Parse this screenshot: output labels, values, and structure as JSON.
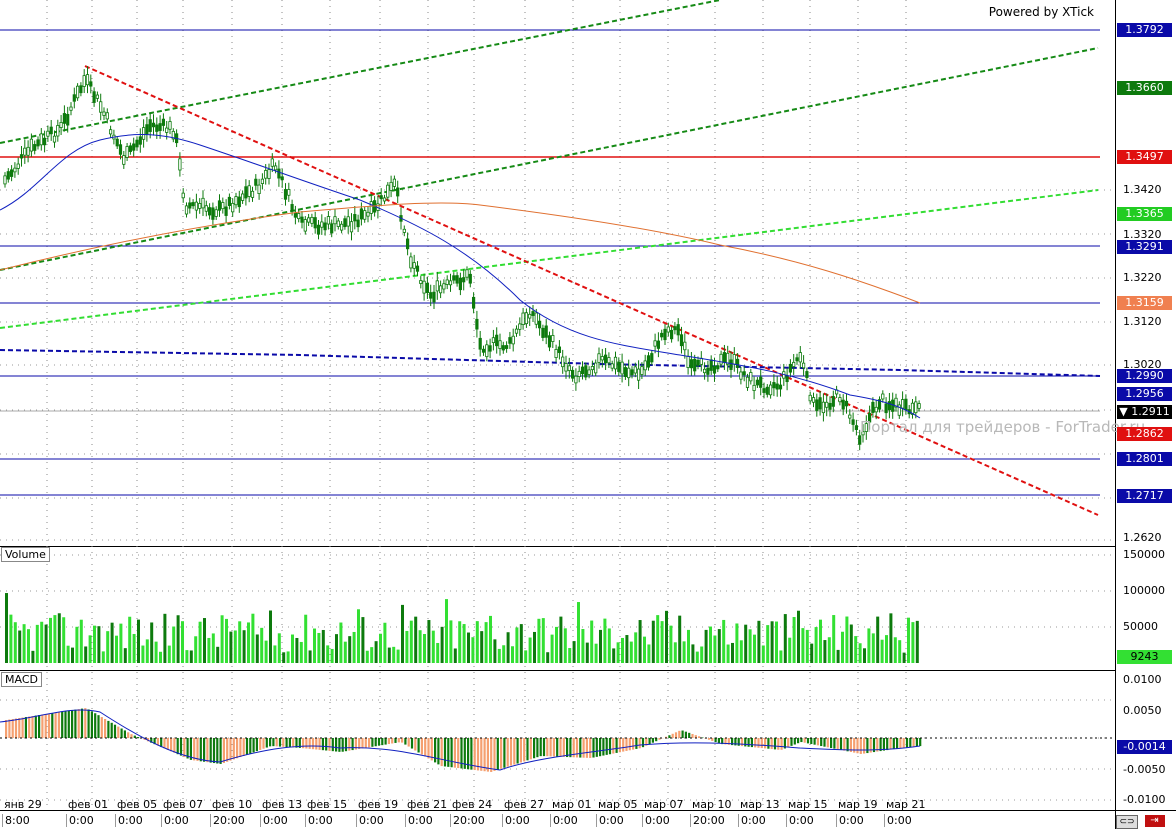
{
  "powered_by": "Powered by XTick",
  "watermark": "Портал для трейдеров - ForTrader.ru",
  "panes": {
    "volume_label": "Volume",
    "macd_label": "MACD"
  },
  "price_axis": {
    "ticks": [
      "1.3420",
      "1.3320",
      "1.3220",
      "1.3120",
      "1.3020",
      "1.2620"
    ],
    "tags": [
      {
        "label": "1.3792",
        "color": "#0a0aa8"
      },
      {
        "label": "1.3660",
        "color": "#0d7a0d"
      },
      {
        "label": "1.3497",
        "color": "#e01010"
      },
      {
        "label": "1.3365",
        "color": "#22cc22"
      },
      {
        "label": "1.3291",
        "color": "#0a0aa8"
      },
      {
        "label": "1.3159",
        "color": "#f08050"
      },
      {
        "label": "1.2990",
        "color": "#0a0aa8"
      },
      {
        "label": "1.2956",
        "color": "#0a0aa8"
      },
      {
        "label": "▼ 1.2911",
        "color": "#000000"
      },
      {
        "label": "1.2862",
        "color": "#e01010"
      },
      {
        "label": "1.2801",
        "color": "#0a0aa8"
      },
      {
        "label": "1.2717",
        "color": "#0a0aa8"
      }
    ]
  },
  "volume_axis": {
    "ticks": [
      "150000",
      "100000",
      "50000"
    ],
    "current": "9243"
  },
  "macd_axis": {
    "ticks": [
      "0.0100",
      "0.0050",
      "-0.0050",
      "-0.0100"
    ],
    "current": "-0.0014"
  },
  "time_axis": {
    "dates": [
      "янв 29",
      "фев 01",
      "фев 05",
      "фев 07",
      "фев 10",
      "фев 13",
      "фев 15",
      "фев 19",
      "фев 21",
      "фев 24",
      "фев 27",
      "мар 01",
      "мар 05",
      "мар 07",
      "мар 10",
      "мар 13",
      "мар 15",
      "мар 19",
      "мар 21"
    ],
    "times": [
      "8:00",
      "0:00",
      "0:00",
      "0:00",
      "20:00",
      "0:00",
      "0:00",
      "0:00",
      "0:00",
      "20:00",
      "0:00",
      "0:00",
      "0:00",
      "0:00",
      "20:00",
      "0:00",
      "0:00",
      "0:00",
      "0:00"
    ]
  },
  "colors": {
    "bull": "#0d7a0d",
    "bear": "#0d7a0d",
    "blue_line": "#0a0aa8",
    "red_line": "#e01010",
    "ma_fast": "#1020c0",
    "ma_slow": "#e07030",
    "green_dash": "#158a15",
    "light_green_dash": "#33dd33",
    "vol_bright": "#33e033",
    "vol_dark": "#0d7a0d",
    "macd_pos": "#0d7a0d",
    "macd_neg_orange": "#f5a070"
  }
}
